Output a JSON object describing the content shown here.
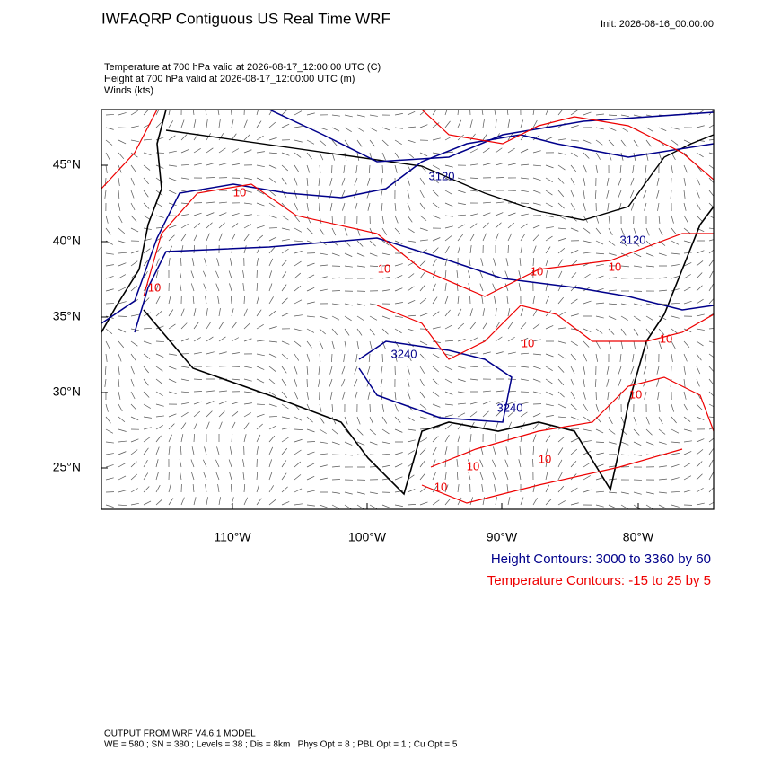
{
  "header": {
    "title": "IWFAQRP Contiguous US Real Time WRF",
    "init": "Init: 2026-08-16_00:00:00"
  },
  "fields": [
    "Temperature at 700 hPa valid at 2026-08-17_12:00:00 UTC   (C)",
    "Height at 700 hPa valid at 2026-08-17_12:00:00 UTC   (m)",
    "Winds   (kts)"
  ],
  "map": {
    "lat_labels": [
      "45°N",
      "40°N",
      "35°N",
      "30°N",
      "25°N"
    ],
    "lon_labels": [
      "110°W",
      "100°W",
      "90°W",
      "80°W"
    ],
    "height_labels": [
      "3120",
      "3120",
      "3240",
      "3240"
    ],
    "temperature_labels": [
      "10",
      "10",
      "10",
      "10",
      "10",
      "10",
      "10",
      "10",
      "10",
      "10",
      "10"
    ]
  },
  "legend": {
    "height": "Height Contours: 3000 to 3360 by 60",
    "temperature": "Temperature Contours: -15 to 25 by 5"
  },
  "footer": [
    "OUTPUT FROM WRF V4.6.1 MODEL",
    "WE = 580 ; SN = 380 ; Levels = 38 ; Dis = 8km ; Phys Opt = 8 ; PBL Opt = 1 ; Cu Opt = 5"
  ]
}
